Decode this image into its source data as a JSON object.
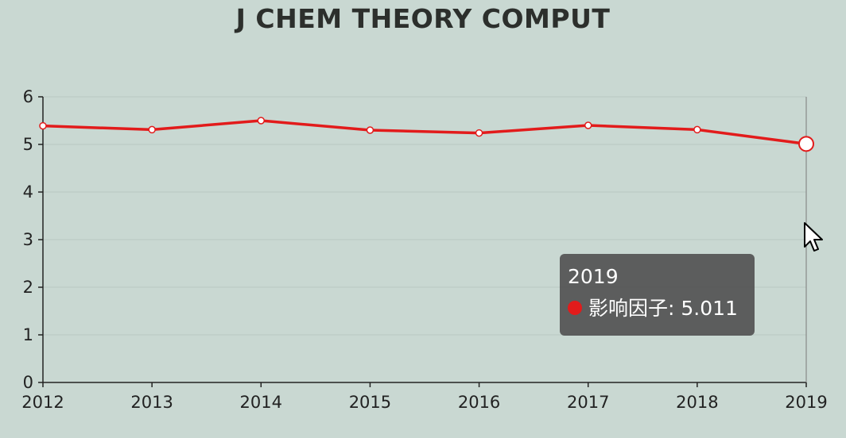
{
  "chart_data": {
    "type": "line",
    "title": "J CHEM THEORY COMPUT",
    "x": [
      "2012",
      "2013",
      "2014",
      "2015",
      "2016",
      "2017",
      "2018",
      "2019"
    ],
    "series": [
      {
        "name": "影响因子",
        "values": [
          5.39,
          5.31,
          5.5,
          5.3,
          5.24,
          5.4,
          5.31,
          5.011
        ],
        "color": "#e21b1b"
      }
    ],
    "ylim": [
      0,
      6
    ],
    "yticks": [
      "0",
      "1",
      "2",
      "3",
      "4",
      "5",
      "6"
    ],
    "xlabel": "",
    "ylabel": "",
    "grid": true,
    "highlight_index": 7
  },
  "tooltip": {
    "title": "2019",
    "series_name": "影响因子",
    "value": "5.011"
  },
  "colors": {
    "background": "#c9d8d2",
    "line": "#e21b1b",
    "tooltip_bg": "#505050"
  },
  "icons": {
    "cursor": "arrow-cursor-icon"
  }
}
